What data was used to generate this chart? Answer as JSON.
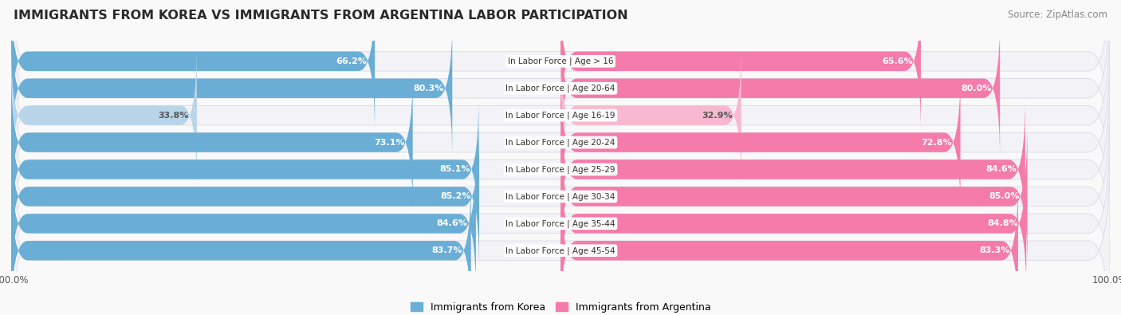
{
  "title": "IMMIGRANTS FROM KOREA VS IMMIGRANTS FROM ARGENTINA LABOR PARTICIPATION",
  "source": "Source: ZipAtlas.com",
  "categories": [
    "In Labor Force | Age > 16",
    "In Labor Force | Age 20-64",
    "In Labor Force | Age 16-19",
    "In Labor Force | Age 20-24",
    "In Labor Force | Age 25-29",
    "In Labor Force | Age 30-34",
    "In Labor Force | Age 35-44",
    "In Labor Force | Age 45-54"
  ],
  "korea_values": [
    66.2,
    80.3,
    33.8,
    73.1,
    85.1,
    85.2,
    84.6,
    83.7
  ],
  "argentina_values": [
    65.6,
    80.0,
    32.9,
    72.8,
    84.6,
    85.0,
    84.8,
    83.3
  ],
  "korea_color": "#6aaed6",
  "korea_color_light": "#b8d5ea",
  "argentina_color": "#f47baa",
  "argentina_color_light": "#f8b8d0",
  "bar_bg_color": "#e8e8ee",
  "row_bg_color": "#f2f2f7",
  "label_color_white": "#ffffff",
  "label_color_dark": "#555555",
  "max_value": 100.0,
  "legend_korea": "Immigrants from Korea",
  "legend_argentina": "Immigrants from Argentina",
  "title_fontsize": 11.5,
  "source_fontsize": 8.5,
  "bar_fontsize": 8.0,
  "category_fontsize": 7.5,
  "background_color": "#f9f9f9",
  "row_bg_outer": "#e0e0e8"
}
